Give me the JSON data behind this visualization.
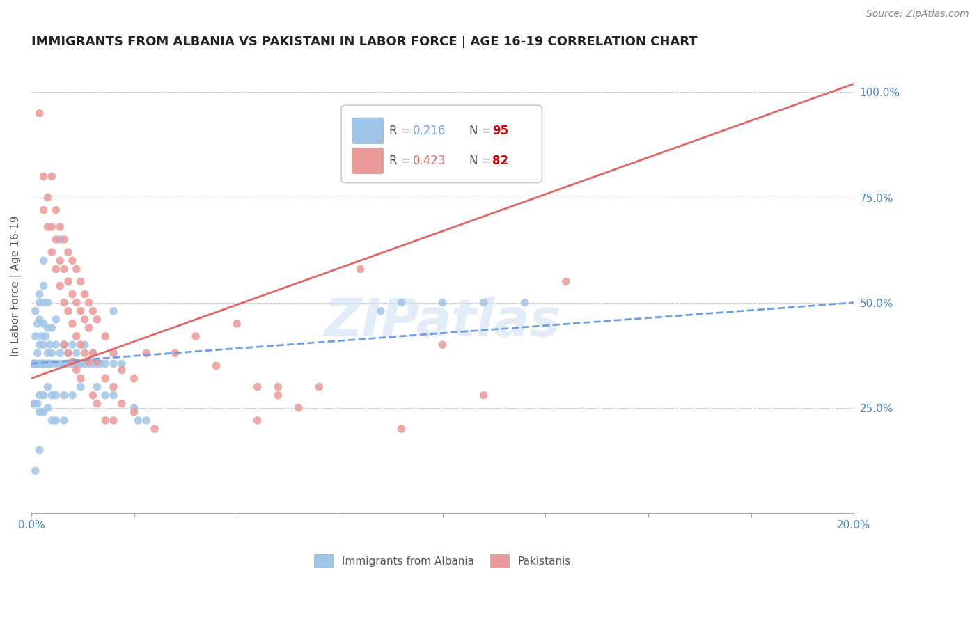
{
  "title": "IMMIGRANTS FROM ALBANIA VS PAKISTANI IN LABOR FORCE | AGE 16-19 CORRELATION CHART",
  "source": "Source: ZipAtlas.com",
  "ylabel": "In Labor Force | Age 16-19",
  "xmin": 0.0,
  "xmax": 0.2,
  "ymin": 0.0,
  "ymax": 1.08,
  "xticks": [
    0.0,
    0.025,
    0.05,
    0.075,
    0.1,
    0.125,
    0.15,
    0.175,
    0.2
  ],
  "xtick_labels": [
    "0.0%",
    "",
    "",
    "",
    "",
    "",
    "",
    "",
    "20.0%"
  ],
  "ytick_positions": [
    0.25,
    0.5,
    0.75,
    1.0
  ],
  "ytick_labels": [
    "25.0%",
    "50.0%",
    "75.0%",
    "100.0%"
  ],
  "albania_color": "#9fc5e8",
  "pakistan_color": "#ea9999",
  "albania_line_color": "#6d9eeb",
  "pakistan_line_color": "#e06666",
  "watermark": "ZIPatlas",
  "albania_scatter": [
    [
      0.0005,
      0.355
    ],
    [
      0.001,
      0.355
    ],
    [
      0.001,
      0.42
    ],
    [
      0.001,
      0.48
    ],
    [
      0.0015,
      0.355
    ],
    [
      0.0015,
      0.38
    ],
    [
      0.0015,
      0.45
    ],
    [
      0.002,
      0.355
    ],
    [
      0.002,
      0.4
    ],
    [
      0.002,
      0.46
    ],
    [
      0.002,
      0.5
    ],
    [
      0.002,
      0.28
    ],
    [
      0.002,
      0.24
    ],
    [
      0.0025,
      0.355
    ],
    [
      0.0025,
      0.42
    ],
    [
      0.003,
      0.355
    ],
    [
      0.003,
      0.4
    ],
    [
      0.003,
      0.45
    ],
    [
      0.003,
      0.5
    ],
    [
      0.003,
      0.28
    ],
    [
      0.003,
      0.24
    ],
    [
      0.0035,
      0.355
    ],
    [
      0.0035,
      0.42
    ],
    [
      0.004,
      0.355
    ],
    [
      0.004,
      0.38
    ],
    [
      0.004,
      0.44
    ],
    [
      0.004,
      0.5
    ],
    [
      0.004,
      0.3
    ],
    [
      0.004,
      0.25
    ],
    [
      0.0045,
      0.355
    ],
    [
      0.0045,
      0.4
    ],
    [
      0.005,
      0.355
    ],
    [
      0.005,
      0.38
    ],
    [
      0.005,
      0.44
    ],
    [
      0.005,
      0.28
    ],
    [
      0.005,
      0.22
    ],
    [
      0.006,
      0.355
    ],
    [
      0.006,
      0.4
    ],
    [
      0.006,
      0.46
    ],
    [
      0.006,
      0.28
    ],
    [
      0.006,
      0.22
    ],
    [
      0.007,
      0.355
    ],
    [
      0.007,
      0.38
    ],
    [
      0.007,
      0.65
    ],
    [
      0.008,
      0.355
    ],
    [
      0.008,
      0.4
    ],
    [
      0.008,
      0.28
    ],
    [
      0.008,
      0.22
    ],
    [
      0.009,
      0.355
    ],
    [
      0.009,
      0.38
    ],
    [
      0.01,
      0.355
    ],
    [
      0.01,
      0.4
    ],
    [
      0.01,
      0.28
    ],
    [
      0.011,
      0.355
    ],
    [
      0.011,
      0.38
    ],
    [
      0.012,
      0.355
    ],
    [
      0.012,
      0.3
    ],
    [
      0.013,
      0.355
    ],
    [
      0.013,
      0.4
    ],
    [
      0.014,
      0.355
    ],
    [
      0.015,
      0.355
    ],
    [
      0.015,
      0.38
    ],
    [
      0.016,
      0.355
    ],
    [
      0.016,
      0.3
    ],
    [
      0.017,
      0.355
    ],
    [
      0.018,
      0.355
    ],
    [
      0.018,
      0.28
    ],
    [
      0.02,
      0.355
    ],
    [
      0.02,
      0.28
    ],
    [
      0.022,
      0.355
    ],
    [
      0.025,
      0.25
    ],
    [
      0.026,
      0.22
    ],
    [
      0.028,
      0.22
    ],
    [
      0.001,
      0.1
    ],
    [
      0.002,
      0.15
    ],
    [
      0.003,
      0.6
    ],
    [
      0.02,
      0.48
    ],
    [
      0.085,
      0.48
    ],
    [
      0.09,
      0.5
    ],
    [
      0.1,
      0.5
    ],
    [
      0.11,
      0.5
    ],
    [
      0.12,
      0.5
    ],
    [
      0.0005,
      0.26
    ],
    [
      0.001,
      0.26
    ],
    [
      0.0015,
      0.26
    ],
    [
      0.002,
      0.52
    ],
    [
      0.003,
      0.54
    ],
    [
      0.0005,
      0.355
    ],
    [
      0.001,
      0.355
    ]
  ],
  "pakistan_scatter": [
    [
      0.002,
      0.95
    ],
    [
      0.003,
      0.8
    ],
    [
      0.003,
      0.72
    ],
    [
      0.004,
      0.75
    ],
    [
      0.004,
      0.68
    ],
    [
      0.005,
      0.8
    ],
    [
      0.005,
      0.68
    ],
    [
      0.005,
      0.62
    ],
    [
      0.006,
      0.72
    ],
    [
      0.006,
      0.65
    ],
    [
      0.006,
      0.58
    ],
    [
      0.007,
      0.68
    ],
    [
      0.007,
      0.6
    ],
    [
      0.007,
      0.54
    ],
    [
      0.008,
      0.65
    ],
    [
      0.008,
      0.58
    ],
    [
      0.008,
      0.5
    ],
    [
      0.008,
      0.4
    ],
    [
      0.009,
      0.62
    ],
    [
      0.009,
      0.55
    ],
    [
      0.009,
      0.48
    ],
    [
      0.009,
      0.38
    ],
    [
      0.01,
      0.6
    ],
    [
      0.01,
      0.52
    ],
    [
      0.01,
      0.45
    ],
    [
      0.01,
      0.36
    ],
    [
      0.011,
      0.58
    ],
    [
      0.011,
      0.5
    ],
    [
      0.011,
      0.42
    ],
    [
      0.011,
      0.34
    ],
    [
      0.012,
      0.55
    ],
    [
      0.012,
      0.48
    ],
    [
      0.012,
      0.4
    ],
    [
      0.012,
      0.32
    ],
    [
      0.013,
      0.52
    ],
    [
      0.013,
      0.46
    ],
    [
      0.013,
      0.38
    ],
    [
      0.014,
      0.5
    ],
    [
      0.014,
      0.44
    ],
    [
      0.014,
      0.36
    ],
    [
      0.015,
      0.48
    ],
    [
      0.015,
      0.38
    ],
    [
      0.015,
      0.28
    ],
    [
      0.016,
      0.46
    ],
    [
      0.016,
      0.36
    ],
    [
      0.016,
      0.26
    ],
    [
      0.018,
      0.42
    ],
    [
      0.018,
      0.32
    ],
    [
      0.018,
      0.22
    ],
    [
      0.02,
      0.38
    ],
    [
      0.02,
      0.3
    ],
    [
      0.02,
      0.22
    ],
    [
      0.022,
      0.34
    ],
    [
      0.022,
      0.26
    ],
    [
      0.025,
      0.32
    ],
    [
      0.025,
      0.24
    ],
    [
      0.028,
      0.38
    ],
    [
      0.03,
      0.2
    ],
    [
      0.035,
      0.38
    ],
    [
      0.04,
      0.42
    ],
    [
      0.045,
      0.35
    ],
    [
      0.05,
      0.45
    ],
    [
      0.055,
      0.3
    ],
    [
      0.06,
      0.3
    ],
    [
      0.065,
      0.25
    ],
    [
      0.07,
      0.3
    ],
    [
      0.08,
      0.58
    ],
    [
      0.09,
      0.2
    ],
    [
      0.1,
      0.4
    ],
    [
      0.11,
      0.28
    ],
    [
      0.13,
      0.55
    ],
    [
      0.055,
      0.22
    ],
    [
      0.06,
      0.28
    ]
  ],
  "albania_trend_x": [
    0.0,
    0.2
  ],
  "albania_trend_y": [
    0.355,
    0.5
  ],
  "pakistan_trend_x": [
    0.0,
    0.2
  ],
  "pakistan_trend_y": [
    0.32,
    1.02
  ],
  "background_color": "#ffffff",
  "grid_color": "#cccccc",
  "title_fontsize": 13,
  "axis_label_fontsize": 11,
  "tick_fontsize": 11,
  "source_fontsize": 10
}
